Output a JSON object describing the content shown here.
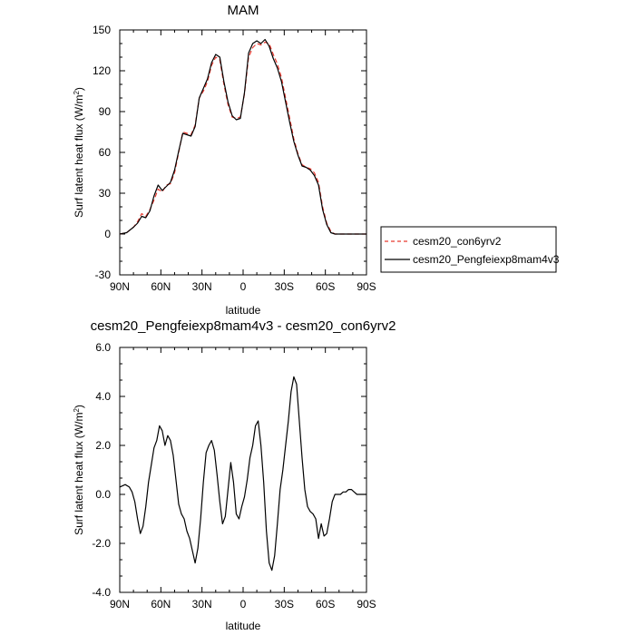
{
  "chart_data": [
    {
      "type": "line",
      "title": "MAM",
      "xlabel": "latitude",
      "ylabel": "Surf latent heat flux (W/m",
      "ylabel_sup": "2",
      "ylabel_close": ")",
      "ylim": [
        -30,
        150
      ],
      "yticks": [
        -30,
        0,
        30,
        60,
        90,
        120,
        150
      ],
      "ytick_labels": [
        "-30",
        "0",
        "30",
        "60",
        "90",
        "120",
        "150"
      ],
      "xlim": [
        90,
        -90
      ],
      "xticks": [
        90,
        60,
        30,
        0,
        -30,
        -60,
        -90
      ],
      "xtick_labels": [
        "90N",
        "60N",
        "30N",
        "0",
        "30S",
        "60S",
        "90S"
      ],
      "legend_position": "right",
      "grid": false,
      "x": [
        90,
        85,
        80,
        77,
        74,
        71,
        68,
        65,
        62,
        59,
        56,
        53,
        50,
        47,
        44,
        41,
        38,
        35,
        32,
        29,
        26,
        23,
        20,
        17,
        14,
        11,
        8,
        5,
        2,
        -1,
        -4,
        -7,
        -10,
        -13,
        -16,
        -19,
        -22,
        -25,
        -28,
        -31,
        -34,
        -37,
        -40,
        -43,
        -46,
        -49,
        -52,
        -55,
        -58,
        -61,
        -64,
        -67,
        -70,
        -73,
        -76,
        -79,
        -82,
        -85,
        -90
      ],
      "series": [
        {
          "name": "cesm20_con6yrv2",
          "color": "#e8392f",
          "dash": "dashed",
          "values": [
            0,
            1,
            5,
            9,
            15,
            13,
            18,
            25,
            33,
            31,
            36,
            37,
            45,
            60,
            75,
            74,
            73,
            80,
            100,
            105,
            112,
            124,
            130,
            128,
            110,
            95,
            86,
            85,
            86,
            103,
            130,
            137,
            140,
            139,
            141,
            140,
            132,
            125,
            115,
            100,
            85,
            70,
            59,
            51,
            49,
            48,
            45,
            38,
            20,
            8,
            2,
            0,
            0,
            0,
            0,
            0,
            0,
            0,
            0
          ]
        },
        {
          "name": "cesm20_Pengfeiexp8mam4v3",
          "color": "#000000",
          "dash": "solid",
          "values": [
            0,
            1,
            5,
            8,
            13,
            12,
            17,
            28,
            36,
            32,
            35,
            38,
            47,
            61,
            74,
            73,
            72,
            79,
            100,
            107,
            114,
            126,
            132,
            130,
            112,
            97,
            87,
            84,
            85,
            104,
            133,
            140,
            142,
            140,
            143,
            138,
            129,
            122,
            112,
            97,
            82,
            68,
            58,
            50,
            49,
            47,
            43,
            36,
            18,
            7,
            1,
            0,
            0,
            0,
            0,
            0,
            0,
            0,
            0
          ]
        }
      ]
    },
    {
      "type": "line",
      "title": "cesm20_Pengfeiexp8mam4v3 - cesm20_con6yrv2",
      "xlabel": "latitude",
      "ylabel": "Surf latent heat flux (W/m",
      "ylabel_sup": "2",
      "ylabel_close": ")",
      "ylim": [
        -4.0,
        6.0
      ],
      "yticks": [
        -4,
        -2,
        0,
        2,
        4,
        6
      ],
      "ytick_labels": [
        "-4.0",
        "-2.0",
        "0.0",
        "2.0",
        "4.0",
        "6.0"
      ],
      "xlim": [
        90,
        -90
      ],
      "xticks": [
        90,
        60,
        30,
        0,
        -30,
        -60,
        -90
      ],
      "xtick_labels": [
        "90N",
        "60N",
        "30N",
        "0",
        "30S",
        "60S",
        "90S"
      ],
      "grid": false,
      "x": [
        90,
        86,
        83,
        81,
        79,
        77,
        75,
        73,
        71,
        69,
        67,
        65,
        63,
        61,
        59,
        57,
        55,
        53,
        51,
        49,
        47,
        45,
        43,
        41,
        39,
        37,
        35,
        33,
        31,
        29,
        27,
        25,
        23,
        21,
        19,
        17,
        15,
        13,
        11,
        9,
        7,
        5,
        3,
        1,
        -1,
        -3,
        -5,
        -7,
        -9,
        -11,
        -13,
        -15,
        -17,
        -19,
        -21,
        -23,
        -25,
        -27,
        -29,
        -31,
        -33,
        -35,
        -37,
        -39,
        -41,
        -43,
        -45,
        -47,
        -49,
        -51,
        -53,
        -55,
        -57,
        -59,
        -61,
        -63,
        -65,
        -67,
        -69,
        -71,
        -73,
        -75,
        -77,
        -79,
        -81,
        -83,
        -85,
        -87,
        -90
      ],
      "series": [
        {
          "name": "",
          "color": "#000000",
          "dash": "solid",
          "values": [
            0.3,
            0.4,
            0.3,
            0.1,
            -0.3,
            -1.0,
            -1.6,
            -1.3,
            -0.5,
            0.5,
            1.2,
            1.9,
            2.2,
            2.8,
            2.6,
            2.0,
            2.4,
            2.2,
            1.6,
            0.6,
            -0.4,
            -0.8,
            -1.0,
            -1.5,
            -1.8,
            -2.3,
            -2.8,
            -2.2,
            -1.0,
            0.5,
            1.7,
            2.0,
            2.2,
            1.8,
            0.8,
            -0.3,
            -1.2,
            -0.9,
            0.2,
            1.3,
            0.5,
            -0.8,
            -1.0,
            -0.5,
            -0.1,
            0.6,
            1.5,
            2.0,
            2.8,
            3.0,
            2.0,
            0.5,
            -1.5,
            -2.8,
            -3.1,
            -2.5,
            -1.2,
            0.2,
            1.0,
            2.0,
            3.0,
            4.2,
            4.8,
            4.5,
            3.0,
            1.5,
            0.2,
            -0.5,
            -0.7,
            -0.8,
            -1.0,
            -1.8,
            -1.2,
            -1.7,
            -1.6,
            -1.0,
            -0.3,
            0.0,
            0.0,
            0.0,
            0.1,
            0.1,
            0.2,
            0.2,
            0.1,
            0.0,
            0.0,
            0.0,
            0.0
          ]
        }
      ]
    }
  ]
}
